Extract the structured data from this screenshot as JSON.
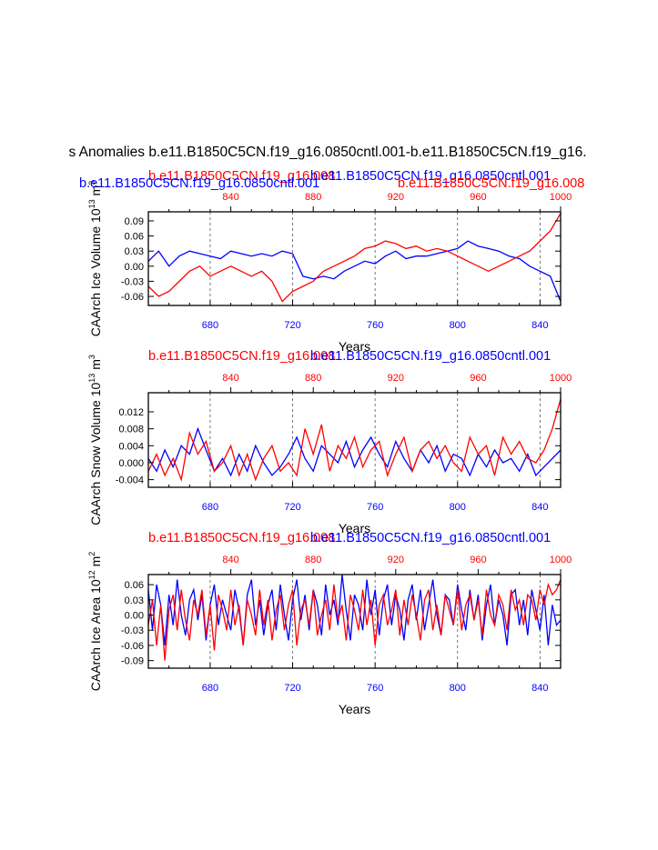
{
  "figure_title": "s Anomalies b.e11.B1850C5CN.f19_g16.0850cntl.001-b.e11.B1850C5CN.f19_g16.",
  "colors": {
    "run_a": "#0000ff",
    "run_b": "#ff0000",
    "axis": "#000000",
    "grid": "#000000"
  },
  "chart_data": [
    {
      "type": "line",
      "id": "ice-volume",
      "ylabel": "CAArch Ice Volume 10^13 m^3",
      "ylabel_main": "CAArch Ice Volume 10",
      "ylabel_exp": "13",
      "ylabel_unit": "m",
      "ylabel_unit_exp": "3",
      "xlabel": "Years",
      "xlim_bottom": [
        650,
        850
      ],
      "xlim_top": [
        800,
        1000
      ],
      "ylim": [
        -0.078,
        0.108
      ],
      "yticks": [
        0.09,
        0.06,
        0.03,
        0.0,
        -0.03,
        -0.06
      ],
      "ytick_labels": [
        "0.09",
        "0.06",
        "0.03",
        "0.00",
        "-0.03",
        "-0.06"
      ],
      "xticks_bottom": [
        680,
        720,
        760,
        800,
        840
      ],
      "xticks_top": [
        840,
        880,
        920,
        960,
        1000
      ],
      "dashed_x": [
        680,
        720,
        760,
        800,
        840
      ],
      "legend": [
        "b.e11.B1850C5CN.f19_g16.0850cntl.001",
        "b.e11.B1850C5CN.f19_g16.008"
      ],
      "legend_top_red": "b.e11.B1850C5CN.f19_g16.008",
      "legend_top_blue": "b.e11.B1850C5CN.f19_g16.0850cntl.001",
      "legend_bot_blue": "b.e11.B1850C5CN.f19_g16.0850cntl.001",
      "legend_bot_red": "b.e11.B1850C5CN.f19_g16.008",
      "series": [
        {
          "name": "b.e11.B1850C5CN.f19_g16.0850cntl.001",
          "color": "#0000ff",
          "x_start": 650,
          "step": 5,
          "values": [
            0.01,
            0.03,
            0.0,
            0.02,
            0.03,
            0.025,
            0.02,
            0.015,
            0.03,
            0.025,
            0.02,
            0.025,
            0.02,
            0.03,
            0.025,
            -0.02,
            -0.025,
            -0.02,
            -0.025,
            -0.01,
            0.0,
            0.01,
            0.005,
            0.02,
            0.03,
            0.015,
            0.02,
            0.02,
            0.025,
            0.03,
            0.035,
            0.05,
            0.04,
            0.035,
            0.03,
            0.02,
            0.015,
            0.0,
            -0.01,
            -0.02,
            -0.07
          ]
        },
        {
          "name": "b.e11.B1850C5CN.f19_g16.008",
          "color": "#ff0000",
          "x_start": 650,
          "step": 5,
          "values": [
            -0.04,
            -0.06,
            -0.05,
            -0.03,
            -0.01,
            0.0,
            -0.02,
            -0.01,
            0.0,
            -0.01,
            -0.02,
            -0.01,
            -0.03,
            -0.07,
            -0.05,
            -0.04,
            -0.03,
            -0.01,
            0.0,
            0.01,
            0.02,
            0.035,
            0.04,
            0.05,
            0.045,
            0.035,
            0.04,
            0.03,
            0.035,
            0.03,
            0.02,
            0.01,
            0.0,
            -0.01,
            0.0,
            0.01,
            0.02,
            0.03,
            0.05,
            0.07,
            0.105
          ]
        }
      ]
    },
    {
      "type": "line",
      "id": "snow-volume",
      "ylabel": "CAArch Snow Volume 10^13 m^3",
      "ylabel_main": "CAArch Snow Volume 10",
      "ylabel_exp": "13",
      "ylabel_unit": "m",
      "ylabel_unit_exp": "3",
      "xlabel": "Years",
      "xlim_bottom": [
        650,
        850
      ],
      "xlim_top": [
        800,
        1000
      ],
      "ylim": [
        -0.0058,
        0.0165
      ],
      "yticks": [
        0.012,
        0.008,
        0.004,
        0.0,
        -0.004
      ],
      "ytick_labels": [
        "0.012",
        "0.008",
        "0.004",
        "0.000",
        "-0.004"
      ],
      "xticks_bottom": [
        680,
        720,
        760,
        800,
        840
      ],
      "xticks_top": [
        840,
        880,
        920,
        960,
        1000
      ],
      "dashed_x": [
        680,
        720,
        760,
        800,
        840
      ],
      "legend_top_red": "b.e11.B1850C5CN.f19_g16.008",
      "legend_top_blue": "b.e11.B1850C5CN.f19_g16.0850cntl.001",
      "series": [
        {
          "name": "b.e11.B1850C5CN.f19_g16.0850cntl.001",
          "color": "#0000ff",
          "x_start": 650,
          "step": 4,
          "values": [
            0.001,
            -0.002,
            0.003,
            -0.001,
            0.004,
            0.002,
            0.008,
            0.003,
            -0.002,
            0.001,
            -0.003,
            0.002,
            -0.002,
            0.004,
            0.0,
            -0.003,
            -0.001,
            0.002,
            0.006,
            0.001,
            -0.002,
            0.004,
            0.002,
            0.0,
            0.005,
            -0.001,
            0.003,
            0.006,
            0.002,
            -0.001,
            0.005,
            0.001,
            -0.002,
            0.003,
            0.0,
            0.004,
            -0.002,
            0.002,
            0.001,
            -0.003,
            0.002,
            -0.001,
            0.003,
            0.0,
            0.001,
            -0.002,
            0.002,
            -0.003,
            -0.001,
            0.001,
            0.003
          ]
        },
        {
          "name": "b.e11.B1850C5CN.f19_g16.008",
          "color": "#ff0000",
          "x_start": 650,
          "step": 4,
          "values": [
            -0.002,
            0.002,
            -0.003,
            0.001,
            -0.004,
            0.007,
            0.002,
            0.005,
            -0.002,
            0.0,
            0.004,
            -0.003,
            0.002,
            -0.004,
            0.001,
            0.004,
            -0.002,
            0.0,
            -0.003,
            0.008,
            0.002,
            0.009,
            -0.002,
            0.004,
            0.001,
            0.006,
            -0.001,
            0.003,
            0.005,
            -0.003,
            0.002,
            0.006,
            -0.002,
            0.003,
            0.005,
            0.001,
            0.004,
            0.0,
            -0.002,
            0.006,
            0.002,
            0.004,
            -0.003,
            0.006,
            0.002,
            0.005,
            0.001,
            0.0,
            0.003,
            0.008,
            0.015
          ]
        }
      ]
    },
    {
      "type": "line",
      "id": "ice-area",
      "ylabel": "CAArch Ice Area 10^12 m^2",
      "ylabel_main": "CAArch Ice Area 10",
      "ylabel_exp": "12",
      "ylabel_unit": "m",
      "ylabel_unit_exp": "2",
      "xlabel": "Years",
      "xlim_bottom": [
        650,
        850
      ],
      "xlim_top": [
        800,
        1000
      ],
      "ylim": [
        -0.105,
        0.08
      ],
      "yticks": [
        0.06,
        0.03,
        0.0,
        -0.03,
        -0.06,
        -0.09
      ],
      "ytick_labels": [
        "0.06",
        "0.03",
        "0.00",
        "-0.03",
        "-0.06",
        "-0.09"
      ],
      "xticks_bottom": [
        680,
        720,
        760,
        800,
        840
      ],
      "xticks_top": [
        840,
        880,
        920,
        960,
        1000
      ],
      "dashed_x": [
        680,
        720,
        760,
        800,
        840
      ],
      "legend_top_red": "b.e11.B1850C5CN.f19_g16.008",
      "legend_top_blue": "b.e11.B1850C5CN.f19_g16.0850cntl.001",
      "series": [
        {
          "name": "b.e11.B1850C5CN.f19_g16.0850cntl.001",
          "color": "#0000ff",
          "x_start": 650,
          "step": 2,
          "values": [
            0.05,
            -0.03,
            0.06,
            0.02,
            -0.06,
            0.04,
            -0.02,
            0.07,
            0.0,
            -0.04,
            0.03,
            0.05,
            -0.01,
            0.04,
            -0.05,
            0.02,
            0.06,
            -0.02,
            0.03,
            0.0,
            -0.03,
            0.05,
            0.01,
            -0.06,
            0.04,
            0.07,
            -0.02,
            0.03,
            -0.04,
            0.02,
            0.05,
            -0.03,
            0.06,
            0.0,
            -0.05,
            0.03,
            0.07,
            -0.01,
            0.04,
            -0.03,
            0.05,
            0.02,
            -0.04,
            0.06,
            0.0,
            0.03,
            -0.02,
            0.08,
            0.01,
            -0.05,
            0.04,
            0.02,
            -0.03,
            0.07,
            0.0,
            0.05,
            -0.04,
            0.03,
            0.06,
            -0.02,
            0.04,
            0.01,
            -0.05,
            0.03,
            0.06,
            -0.01,
            0.05,
            -0.03,
            0.02,
            0.07,
            0.0,
            -0.04,
            0.04,
            0.03,
            -0.02,
            0.06,
            0.01,
            -0.03,
            0.05,
            -0.01,
            0.04,
            -0.05,
            0.02,
            0.06,
            -0.02,
            0.03,
            0.0,
            -0.06,
            0.04,
            0.05,
            -0.02,
            0.03,
            -0.04,
            0.05,
            0.01,
            -0.03,
            0.04,
            -0.06,
            0.02,
            -0.02,
            -0.01
          ]
        },
        {
          "name": "b.e11.B1850C5CN.f19_g16.008",
          "color": "#ff0000",
          "x_start": 650,
          "step": 2,
          "values": [
            -0.02,
            0.03,
            -0.06,
            0.02,
            -0.09,
            0.01,
            0.04,
            -0.03,
            0.05,
            -0.01,
            -0.05,
            0.03,
            0.0,
            0.05,
            -0.04,
            0.02,
            -0.07,
            0.04,
            0.01,
            -0.03,
            0.05,
            -0.02,
            0.02,
            -0.06,
            0.03,
            0.0,
            -0.04,
            0.05,
            -0.02,
            0.03,
            -0.05,
            0.01,
            0.04,
            -0.03,
            0.02,
            0.05,
            -0.06,
            0.01,
            0.03,
            -0.02,
            0.05,
            -0.04,
            0.0,
            0.03,
            -0.03,
            0.06,
            -0.01,
            0.02,
            -0.05,
            0.04,
            0.01,
            -0.03,
            0.05,
            -0.02,
            0.03,
            -0.06,
            0.02,
            0.04,
            -0.02,
            0.01,
            0.05,
            -0.04,
            0.03,
            -0.02,
            0.04,
            0.0,
            -0.05,
            0.03,
            0.05,
            -0.03,
            0.02,
            -0.04,
            0.04,
            0.01,
            -0.02,
            0.05,
            -0.03,
            0.02,
            0.04,
            -0.01,
            0.03,
            -0.04,
            0.05,
            0.0,
            -0.02,
            0.04,
            0.02,
            -0.03,
            0.05,
            0.01,
            0.03,
            -0.02,
            0.04,
            0.03,
            -0.01,
            0.05,
            0.02,
            0.06,
            0.04,
            0.05,
            0.07
          ]
        }
      ]
    }
  ]
}
